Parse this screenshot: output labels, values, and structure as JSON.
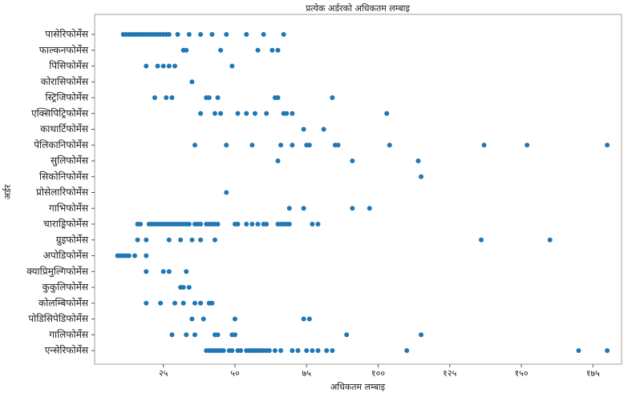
{
  "chart_data": {
    "type": "strip",
    "title": "प्रत्येक अर्डरको अधिकतम लम्बाइ",
    "x_label": "अधिकतम लम्बाइ",
    "y_label": "अर्डर",
    "color": "#1f77b4",
    "xlim": [
      1,
      185
    ],
    "xticks": [
      {
        "value": 25,
        "label": "२५"
      },
      {
        "value": 50,
        "label": "५०"
      },
      {
        "value": 75,
        "label": "७५"
      },
      {
        "value": 100,
        "label": "१००"
      },
      {
        "value": 125,
        "label": "१२५"
      },
      {
        "value": 150,
        "label": "१५०"
      },
      {
        "value": 175,
        "label": "१७५"
      }
    ],
    "categories": [
      "पासेरिफोर्मेस",
      "फाल्कनफोर्मेस",
      "पिसिफोर्मेस",
      "कोरासिफोर्मेस",
      "स्ट्रिजिफोर्मेस",
      "एक्सिपिट्रिफोर्मेस",
      "काथार्टिफोर्मेस",
      "पेलिकानिफोर्मेस",
      "सुलिफोर्मेस",
      "सिकोनिफोर्मेस",
      "प्रोसेलारिफोर्मेस",
      "गाभिफोर्मेस",
      "चाराड्रिफोर्मेस",
      "ग्रुइफोर्मेस",
      "अपोडिफोर्मेस",
      "क्याप्रिमुल्गिफोर्मेस",
      "कुकुलिफोर्मेस",
      "कोलम्बिफोर्मेस",
      "पोडिसिपेडिफोर्मेस",
      "गालिफोर्मेस",
      "एन्सेरिफोर्मेस"
    ],
    "values": [
      [
        11,
        12,
        13,
        14,
        15,
        16,
        17,
        18,
        19,
        20,
        21,
        22,
        23,
        24,
        25,
        26,
        27,
        30,
        34,
        38,
        42,
        47,
        54,
        60,
        67
      ],
      [
        32,
        33,
        45,
        58,
        63,
        65
      ],
      [
        19,
        23,
        25,
        27,
        29,
        49
      ],
      [
        35
      ],
      [
        22,
        26,
        28,
        40,
        41,
        44,
        64,
        65,
        84
      ],
      [
        38,
        43,
        45,
        51,
        54,
        57,
        61,
        67,
        68,
        70,
        103
      ],
      [
        74,
        81
      ],
      [
        36,
        47,
        56,
        66,
        70,
        75,
        76,
        85,
        86,
        104,
        137,
        152,
        180
      ],
      [
        65,
        91,
        114
      ],
      [
        115
      ],
      [
        47
      ],
      [
        69,
        74,
        91,
        97
      ],
      [
        16,
        17,
        20,
        21,
        22,
        23,
        24,
        25,
        26,
        27,
        28,
        29,
        30,
        31,
        32,
        33,
        34,
        36,
        37,
        38,
        40,
        41,
        42,
        43,
        44,
        50,
        51,
        54,
        56,
        58,
        60,
        61,
        65,
        66,
        67,
        68,
        69,
        77,
        79
      ],
      [
        16,
        19,
        27,
        31,
        35,
        38,
        43,
        136,
        160
      ],
      [
        9,
        10,
        11,
        12,
        13,
        15,
        19
      ],
      [
        19,
        25,
        27,
        33
      ],
      [
        31,
        32,
        34
      ],
      [
        19,
        24,
        29,
        32,
        36,
        38,
        41,
        42
      ],
      [
        35,
        39,
        50,
        74,
        76
      ],
      [
        28,
        33,
        36,
        43,
        44,
        49,
        50,
        89,
        115
      ],
      [
        40,
        41,
        42,
        43,
        44,
        45,
        46,
        48,
        49,
        51,
        52,
        54,
        55,
        56,
        57,
        58,
        59,
        60,
        61,
        62,
        64,
        66,
        70,
        72,
        75,
        77,
        79,
        82,
        84,
        110,
        170,
        180
      ]
    ]
  }
}
